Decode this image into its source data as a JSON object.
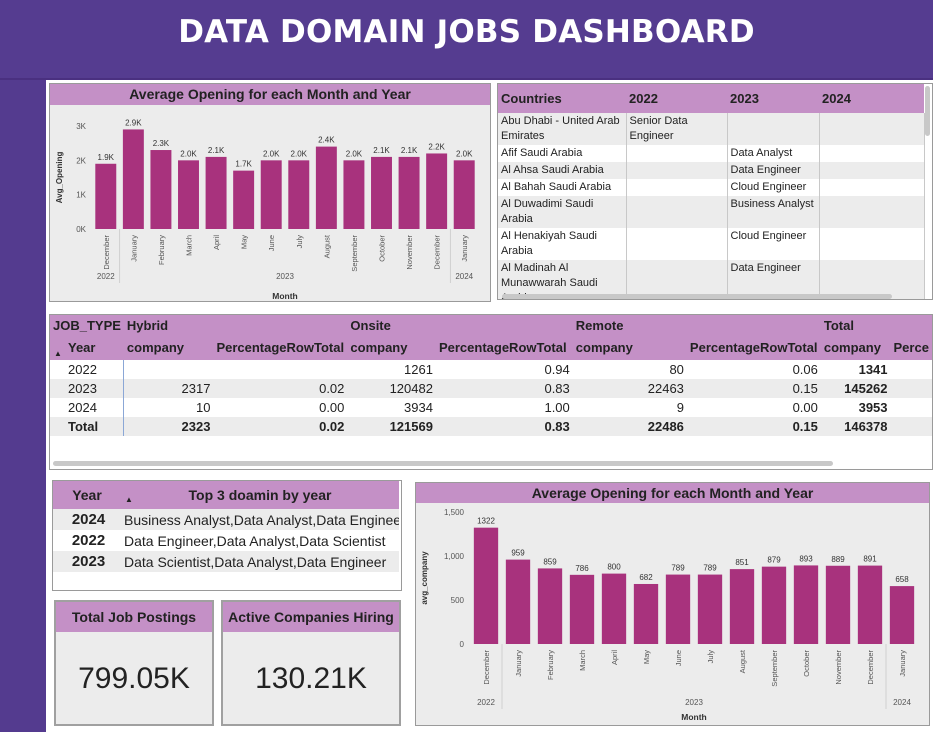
{
  "header": {
    "title": "DATA DOMAIN JOBS DASHBOARD"
  },
  "chart1": {
    "title": "Average Opening for each Month and Year",
    "ylabel": "Avg_Opening",
    "xlabel": "Month",
    "yticks": [
      "0K",
      "1K",
      "2K",
      "3K"
    ]
  },
  "chart2": {
    "title": "Average Opening for each Month and Year",
    "ylabel": "avg_company",
    "xlabel": "Month",
    "yticks": [
      "0",
      "500",
      "1,000",
      "1,500"
    ]
  },
  "chart_data": [
    {
      "type": "bar",
      "title": "Average Opening for each Month and Year",
      "xlabel": "Month",
      "ylabel": "Avg_Opening",
      "categories": [
        "December",
        "January",
        "February",
        "March",
        "April",
        "May",
        "June",
        "July",
        "August",
        "September",
        "October",
        "November",
        "December",
        "January"
      ],
      "years": [
        "2022",
        "2023",
        "2024"
      ],
      "values": [
        1900,
        2900,
        2300,
        2000,
        2100,
        1700,
        2000,
        2000,
        2400,
        2000,
        2100,
        2100,
        2200,
        2000
      ],
      "labels": [
        "1.9K",
        "2.9K",
        "2.3K",
        "2.0K",
        "2.1K",
        "1.7K",
        "2.0K",
        "2.0K",
        "2.4K",
        "2.0K",
        "2.1K",
        "2.1K",
        "2.2K",
        "2.0K"
      ],
      "ylim": [
        0,
        3000
      ]
    },
    {
      "type": "bar",
      "title": "Average Opening for each Month and Year",
      "xlabel": "Month",
      "ylabel": "avg_company",
      "categories": [
        "December",
        "January",
        "February",
        "March",
        "April",
        "May",
        "June",
        "July",
        "August",
        "September",
        "October",
        "November",
        "December",
        "January"
      ],
      "years": [
        "2022",
        "2023",
        "2024"
      ],
      "values": [
        1322,
        959,
        859,
        786,
        800,
        682,
        789,
        789,
        851,
        879,
        893,
        889,
        891,
        658
      ],
      "labels": [
        "1322",
        "959",
        "859",
        "786",
        "800",
        "682",
        "789",
        "789",
        "851",
        "879",
        "893",
        "889",
        "891",
        "658"
      ],
      "ylim": [
        0,
        1500
      ]
    }
  ],
  "countries": {
    "headers": [
      "Countries",
      "2022",
      "2023",
      "2024"
    ],
    "rows": [
      [
        "Abu Dhabi - United Arab Emirates",
        "Senior Data Engineer",
        "",
        ""
      ],
      [
        "Afif Saudi Arabia",
        "",
        "Data Analyst",
        ""
      ],
      [
        "Al Ahsa Saudi Arabia",
        "",
        "Data Engineer",
        ""
      ],
      [
        "Al Bahah Saudi Arabia",
        "",
        "Cloud Engineer",
        ""
      ],
      [
        "Al Duwadimi Saudi Arabia",
        "",
        "Business Analyst",
        ""
      ],
      [
        "Al Henakiyah Saudi Arabia",
        "",
        "Cloud Engineer",
        ""
      ],
      [
        "Al Madinah Al Munawwarah Saudi Arabia",
        "",
        "Data Engineer",
        ""
      ]
    ]
  },
  "jobtype": {
    "corner": "JOB_TYPE",
    "row_header": "Year",
    "groups": [
      "Hybrid",
      "Onsite",
      "Remote",
      "Total"
    ],
    "subcols": [
      "company",
      "PercentageRowTotal",
      "company",
      "PercentageRowTotal",
      "company",
      "PercentageRowTotal",
      "company",
      "Perce"
    ],
    "rows": [
      [
        "2022",
        "",
        "",
        "1261",
        "0.94",
        "80",
        "0.06",
        "1341"
      ],
      [
        "2023",
        "2317",
        "0.02",
        "120482",
        "0.83",
        "22463",
        "0.15",
        "145262"
      ],
      [
        "2024",
        "10",
        "0.00",
        "3934",
        "1.00",
        "9",
        "0.00",
        "3953"
      ]
    ],
    "total": [
      "Total",
      "2323",
      "0.02",
      "121569",
      "0.83",
      "22486",
      "0.15",
      "146378"
    ]
  },
  "top3": {
    "headers": [
      "Year",
      "Top 3 doamin by year"
    ],
    "rows": [
      [
        "2024",
        "Business Analyst,Data Analyst,Data Engineer"
      ],
      [
        "2022",
        "Data Engineer,Data Analyst,Data Scientist"
      ],
      [
        "2023",
        "Data Scientist,Data Analyst,Data Engineer"
      ]
    ]
  },
  "kpi": {
    "postings_title": "Total Job Postings",
    "postings_value": "799.05K",
    "companies_title": "Active Companies Hiring",
    "companies_value": "130.21K"
  },
  "colors": {
    "bar": "#a8327d",
    "header_band": "#c490c6",
    "background": "#553c90"
  }
}
